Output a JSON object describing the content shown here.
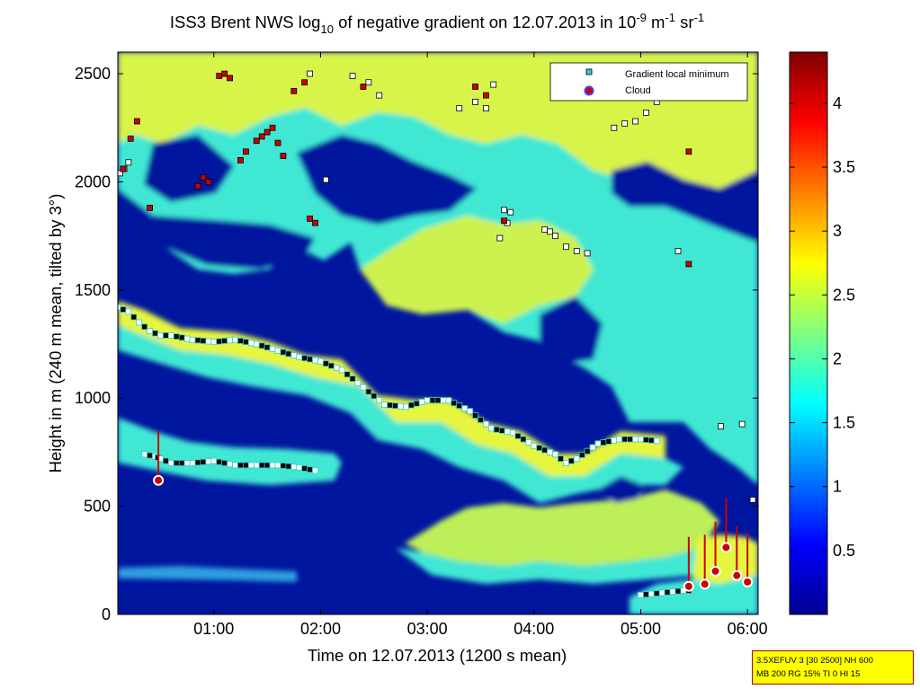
{
  "chart_data": {
    "type": "heatmap",
    "title": {
      "prefix": "ISS3 Brent NWS log",
      "log_sub": "10",
      "mid": " of negative gradient on 12.07.2013 in 10",
      "exp1": "-9",
      "unit1": " m",
      "exp2": "-1",
      "unit2": " sr",
      "exp3": "-1"
    },
    "xlabel": "Time on 12.07.2013 (1200 s mean)",
    "ylabel": "Height in m (240 m mean, tilted by 3°)",
    "xlim_hours": [
      0.1,
      6.1
    ],
    "ylim": [
      0,
      2600
    ],
    "x_ticks": [
      {
        "value": 1,
        "label": "01:00"
      },
      {
        "value": 2,
        "label": "02:00"
      },
      {
        "value": 3,
        "label": "03:00"
      },
      {
        "value": 4,
        "label": "04:00"
      },
      {
        "value": 5,
        "label": "05:00"
      },
      {
        "value": 6,
        "label": "06:00"
      }
    ],
    "y_ticks": [
      {
        "value": 0,
        "label": "0"
      },
      {
        "value": 500,
        "label": "500"
      },
      {
        "value": 1000,
        "label": "1000"
      },
      {
        "value": 1500,
        "label": "1500"
      },
      {
        "value": 2000,
        "label": "2000"
      },
      {
        "value": 2500,
        "label": "2500"
      }
    ],
    "colorbar": {
      "range": [
        0,
        4.4
      ],
      "ticks": [
        {
          "value": 0.5,
          "label": "0.5"
        },
        {
          "value": 1,
          "label": "1"
        },
        {
          "value": 1.5,
          "label": "1.5"
        },
        {
          "value": 2,
          "label": "2"
        },
        {
          "value": 2.5,
          "label": "2.5"
        },
        {
          "value": 3,
          "label": "3"
        },
        {
          "value": 3.5,
          "label": "3.5"
        },
        {
          "value": 4,
          "label": "4"
        }
      ]
    },
    "legend": {
      "placement": "top-right",
      "items": [
        {
          "label": "Gradient local minimum",
          "marker": "square",
          "color": "#33cccc"
        },
        {
          "label": "Cloud",
          "marker": "circle",
          "color": "#cc0000"
        }
      ]
    },
    "series": [
      {
        "kind": "gradient-minimum-layer",
        "x": [
          0.1,
          0.2,
          0.3,
          0.4,
          0.5,
          0.6,
          0.8,
          1.0,
          1.2,
          1.4,
          1.6,
          1.8,
          2.0,
          2.2,
          2.4,
          2.6,
          2.8,
          3.0,
          3.2,
          3.4,
          3.6,
          3.8,
          4.0,
          4.2,
          4.3,
          4.4,
          4.6,
          4.8,
          5.0,
          5.2
        ],
        "y": [
          1420,
          1400,
          1350,
          1310,
          1290,
          1290,
          1270,
          1260,
          1270,
          1250,
          1220,
          1190,
          1170,
          1130,
          1050,
          970,
          960,
          990,
          990,
          940,
          860,
          840,
          780,
          740,
          700,
          720,
          790,
          810,
          810,
          800
        ]
      },
      {
        "kind": "gradient-minimum-layer",
        "x": [
          0.35,
          0.45,
          0.5,
          0.6,
          0.8,
          1.0,
          1.2,
          1.4,
          1.6,
          1.8,
          2.0
        ],
        "y": [
          740,
          730,
          720,
          700,
          700,
          710,
          690,
          690,
          690,
          680,
          660
        ]
      },
      {
        "kind": "gradient-minimum-layer",
        "x": [
          5.0,
          5.1,
          5.2,
          5.3,
          5.4,
          5.5
        ],
        "y": [
          90,
          95,
          100,
          105,
          110,
          110
        ]
      },
      {
        "kind": "gradient-minimum-scatter",
        "x": [
          0.12,
          0.16,
          0.2,
          1.9,
          2.05,
          2.3,
          2.45,
          2.55,
          3.3,
          3.45,
          3.55,
          3.62,
          3.72,
          3.78,
          3.68,
          3.75,
          4.1,
          4.15,
          4.2,
          4.3,
          4.4,
          4.5,
          4.75,
          4.85,
          4.95,
          5.05,
          5.15,
          5.35,
          5.75,
          5.95,
          6.05
        ],
        "y": [
          2040,
          2060,
          2090,
          2500,
          2010,
          2490,
          2460,
          2400,
          2340,
          2370,
          2340,
          2450,
          1870,
          1860,
          1740,
          1810,
          1780,
          1770,
          1750,
          1700,
          1680,
          1670,
          2250,
          2270,
          2280,
          2320,
          2370,
          1680,
          870,
          880,
          530
        ]
      },
      {
        "kind": "gradient-minimum-scatter-high",
        "x": [
          0.15,
          0.22,
          0.28,
          0.4,
          0.85,
          0.9,
          0.95,
          1.05,
          1.1,
          1.15,
          1.25,
          1.3,
          1.4,
          1.45,
          1.5,
          1.55,
          1.6,
          1.65,
          1.75,
          1.85,
          1.9,
          1.95,
          2.4,
          3.45,
          3.55,
          3.72,
          5.45,
          5.45
        ],
        "y": [
          2060,
          2200,
          2280,
          1880,
          1980,
          2020,
          2000,
          2490,
          2500,
          2480,
          2100,
          2140,
          2190,
          2210,
          2230,
          2250,
          2180,
          2120,
          2420,
          2460,
          1830,
          1810,
          2440,
          2440,
          2400,
          1820,
          2140,
          1620
        ]
      },
      {
        "kind": "cloud",
        "x": [
          0.48,
          5.45,
          5.6,
          5.7,
          5.8,
          5.9,
          6.0
        ],
        "y": [
          620,
          130,
          140,
          200,
          310,
          180,
          150
        ]
      }
    ]
  },
  "info_box": {
    "line1": "3.5XEFUV 3 [30 2500] NH 600",
    "line2": "MB 200 RG 15% TI 0 HI 15"
  }
}
